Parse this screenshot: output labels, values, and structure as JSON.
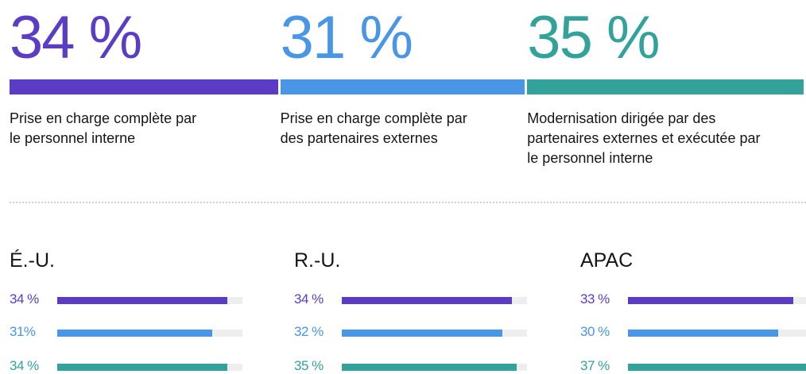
{
  "chart_data": [
    {
      "type": "segments",
      "categories": [
        "Prise en charge complète par le personnel interne",
        "Prise en charge complète par des partenaires externes",
        "Modernisation dirigée par des partenaires externes et exécutée par le personnel interne"
      ],
      "values": [
        34,
        31,
        35
      ],
      "value_labels": [
        "34 %",
        "31 %",
        "35 %"
      ],
      "colors": [
        "#5b3cc4",
        "#4a96e6",
        "#33a29b"
      ],
      "xlim": [
        0,
        100
      ]
    },
    {
      "type": "bar",
      "title": "É.-U.",
      "values": [
        34,
        31,
        34
      ],
      "value_labels": [
        "34 %",
        "31%",
        "34 %"
      ],
      "colors": [
        "#5b3cc4",
        "#4a96e6",
        "#33a29b"
      ],
      "xlim": [
        0,
        37
      ]
    },
    {
      "type": "bar",
      "title": "R.-U.",
      "values": [
        34,
        32,
        35
      ],
      "value_labels": [
        "34 %",
        "32 %",
        "35 %"
      ],
      "colors": [
        "#5b3cc4",
        "#4a96e6",
        "#33a29b"
      ],
      "xlim": [
        0,
        37
      ]
    },
    {
      "type": "bar",
      "title": "APAC",
      "values": [
        33,
        30,
        37
      ],
      "value_labels": [
        "33 %",
        "30 %",
        "37 %"
      ],
      "colors": [
        "#5b3cc4",
        "#4a96e6",
        "#33a29b"
      ],
      "xlim": [
        0,
        37
      ]
    }
  ]
}
